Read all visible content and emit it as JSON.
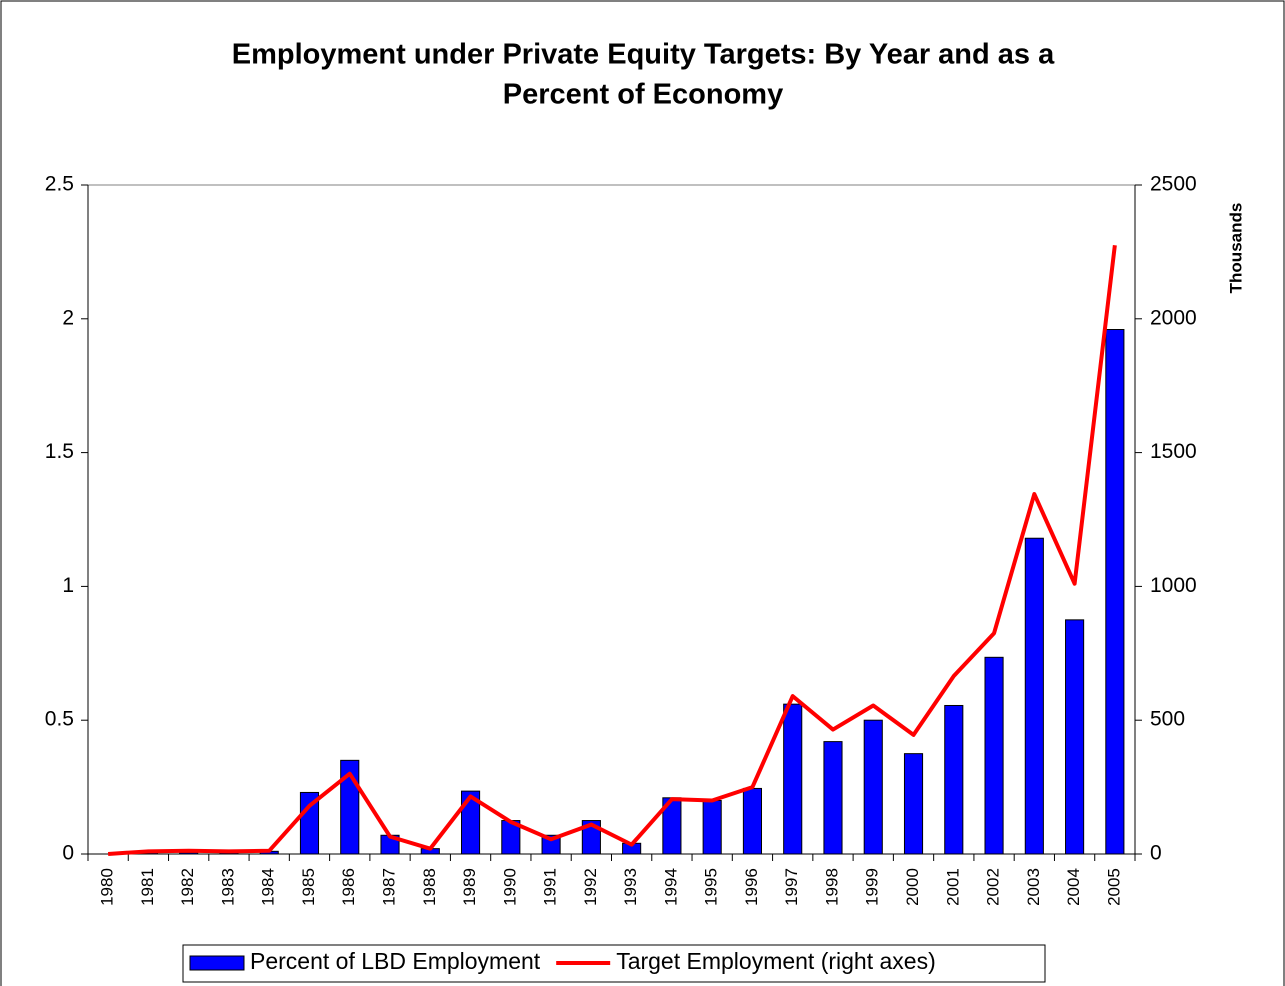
{
  "chart_data": {
    "type": "bar-line",
    "title": [
      "Employment under Private Equity Targets: By Year and as a",
      "Percent of Economy"
    ],
    "y2_label": "Thousands",
    "categories": [
      "1980",
      "1981",
      "1982",
      "1983",
      "1984",
      "1985",
      "1986",
      "1987",
      "1988",
      "1989",
      "1990",
      "1991",
      "1992",
      "1993",
      "1994",
      "1995",
      "1996",
      "1997",
      "1998",
      "1999",
      "2000",
      "2001",
      "2002",
      "2003",
      "2004",
      "2005"
    ],
    "series": [
      {
        "name": "Percent of LBD Employment",
        "type": "bar",
        "color": "#0000ff",
        "values": [
          0,
          0.005,
          0.005,
          0.005,
          0.01,
          0.23,
          0.35,
          0.07,
          0.02,
          0.235,
          0.125,
          0.07,
          0.125,
          0.04,
          0.21,
          0.2,
          0.245,
          0.56,
          0.42,
          0.5,
          0.375,
          0.555,
          0.735,
          1.18,
          0.875,
          1.96
        ]
      },
      {
        "name": "Target Employment (right axes)",
        "type": "line",
        "axis": "y2",
        "color": "#ff0000",
        "values": [
          0,
          10,
          12,
          10,
          12,
          180,
          300,
          65,
          20,
          215,
          120,
          55,
          110,
          35,
          205,
          200,
          250,
          590,
          465,
          555,
          445,
          665,
          825,
          1345,
          1010,
          2275
        ]
      }
    ],
    "ylim": [
      0,
      2.5
    ],
    "yticks": [
      0,
      0.5,
      1,
      1.5,
      2,
      2.5
    ],
    "y2lim": [
      0,
      2500
    ],
    "y2ticks": [
      0,
      500,
      1000,
      1500,
      2000,
      2500
    ],
    "legend": "bottom"
  }
}
